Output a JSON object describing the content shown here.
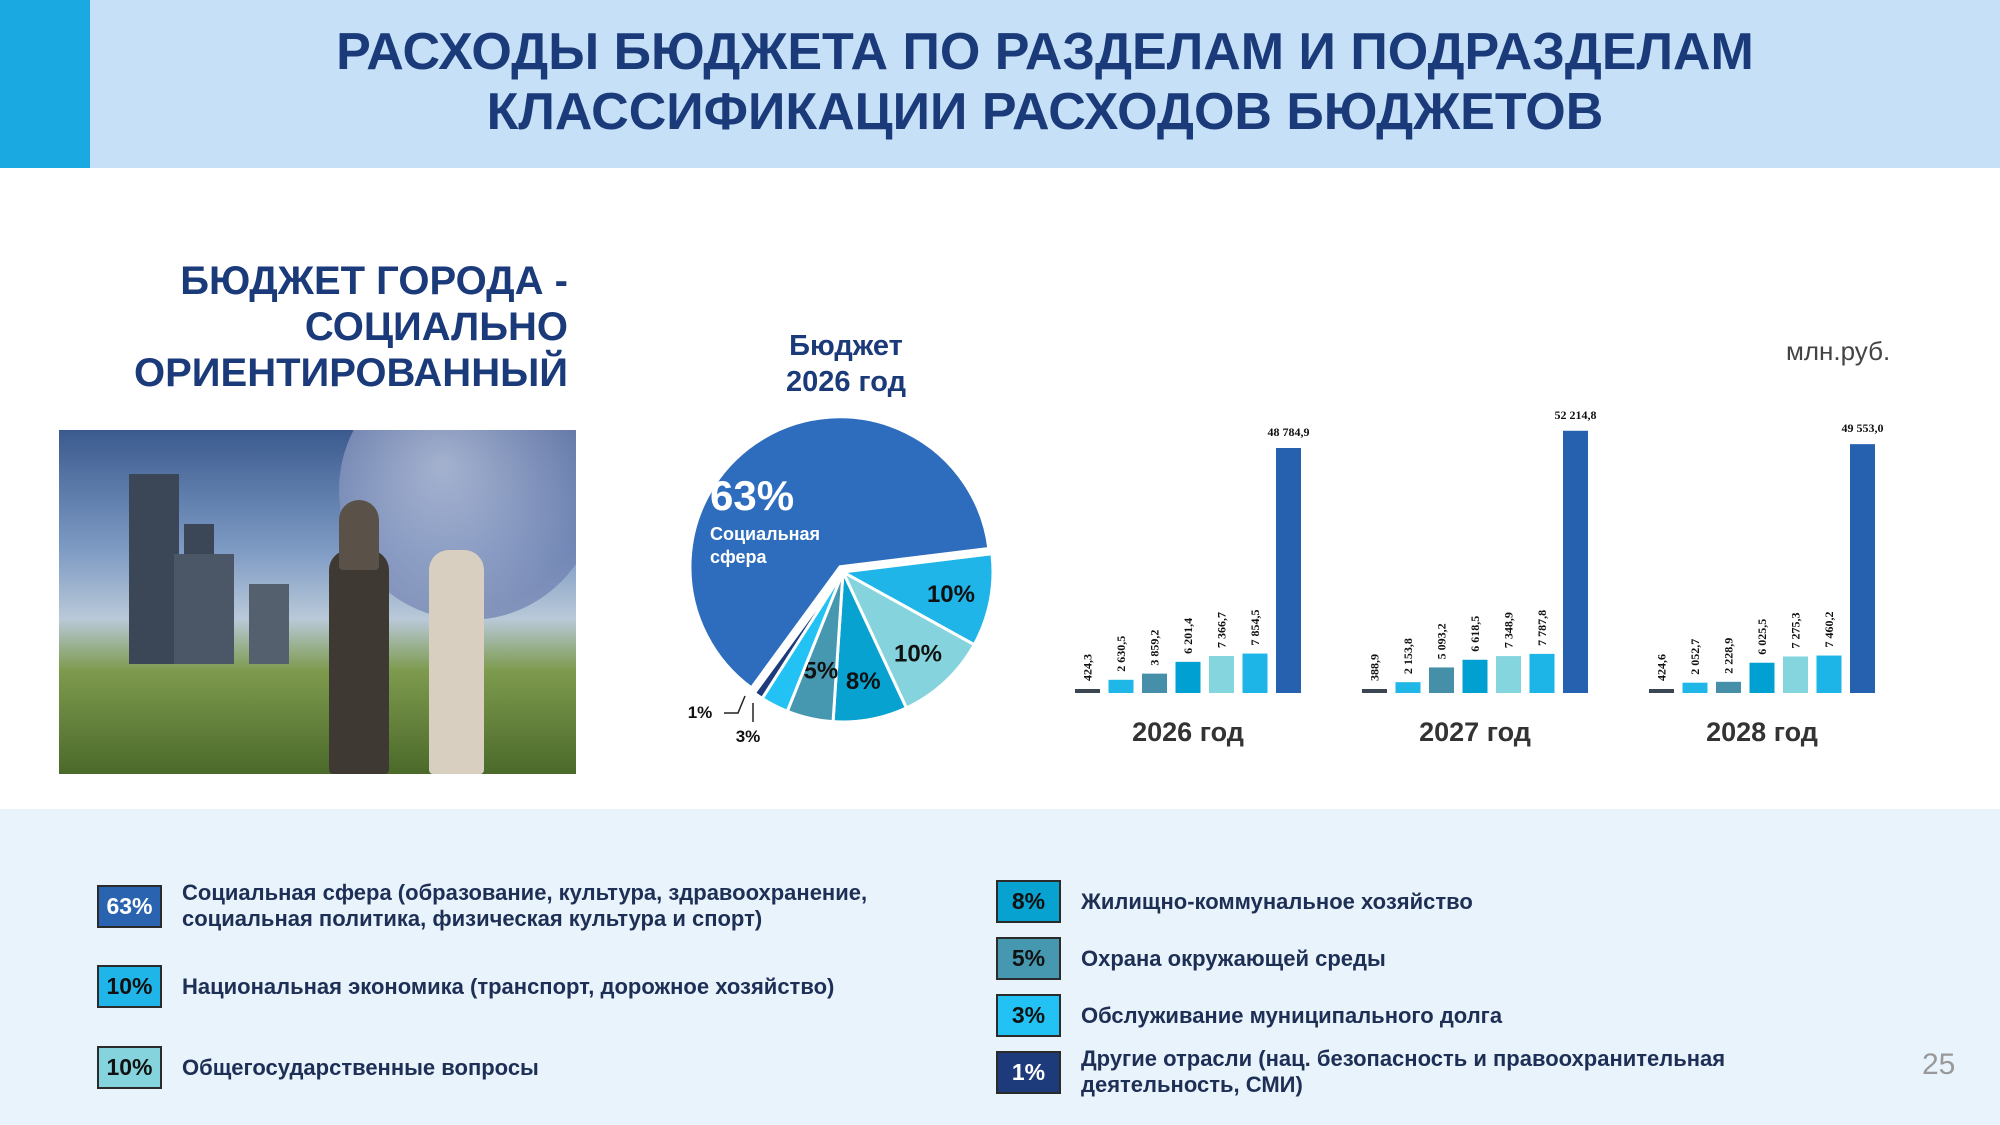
{
  "header": {
    "title_line1": "РАСХОДЫ БЮДЖЕТА ПО РАЗДЕЛАМ И ПОДРАЗДЕЛАМ",
    "title_line2": "КЛАССИФИКАЦИИ РАСХОДОВ БЮДЖЕТОВ"
  },
  "left_heading": {
    "line1": "БЮДЖЕТ ГОРОДА -",
    "line2": "СОЦИАЛЬНО",
    "line3": "ОРИЕНТИРОВАННЫЙ"
  },
  "unit": "млн.руб.",
  "page_number": "25",
  "legend": [
    {
      "pct": "63%",
      "text": "Социальная сфера (образование, культура, здравоохранение, социальная политика, физическая культура и спорт)",
      "color": "#2a64b0",
      "text_color": "#ffffff"
    },
    {
      "pct": "10%",
      "text": "Национальная экономика (транспорт, дорожное хозяйство)",
      "color": "#1fb5e8",
      "text_color": "#111111"
    },
    {
      "pct": "10%",
      "text": "Общегосударственные вопросы",
      "color": "#85d4dd",
      "text_color": "#111111"
    },
    {
      "pct": "8%",
      "text": "Жилищно-коммунальное хозяйство",
      "color": "#08a2d0",
      "text_color": "#111111"
    },
    {
      "pct": "5%",
      "text": "Охрана окружающей среды",
      "color": "#4598b0",
      "text_color": "#111111"
    },
    {
      "pct": "3%",
      "text": "Обслуживание муниципального долга",
      "color": "#22c3f4",
      "text_color": "#111111"
    },
    {
      "pct": "1%",
      "text": "Другие отрасли (нац. безопасность и правоохранительная деятельность, СМИ)",
      "color": "#1d3b7a",
      "text_color": "#ffffff"
    }
  ],
  "chart_data": [
    {
      "type": "pie",
      "title": "Бюджет 2026 год",
      "slices": [
        {
          "label": "10%",
          "value": 10,
          "color": "#1fb5e8"
        },
        {
          "label": "10%",
          "value": 10,
          "color": "#85d4dd"
        },
        {
          "label": "8%",
          "value": 8,
          "color": "#08a2d0"
        },
        {
          "label": "5%",
          "value": 5,
          "color": "#4598b0"
        },
        {
          "label": "3%",
          "value": 3,
          "color": "#22c3f4"
        },
        {
          "label": "1%",
          "value": 1,
          "color": "#1d3b7a"
        },
        {
          "label": "63%",
          "value": 63,
          "color": "#2e6dbd",
          "sublabel": "Социальная сфера"
        }
      ]
    },
    {
      "type": "bar",
      "ylabel": "млн.руб.",
      "groups": [
        {
          "label": "2026 год",
          "values": [
            424.3,
            2630.5,
            3859.2,
            6201.4,
            7366.7,
            7854.5,
            48784.9
          ],
          "labels": [
            "424,3",
            "2 630,5",
            "3 859,2",
            "6 201,4",
            "7 366,7",
            "7 854,5",
            "48 784,9"
          ]
        },
        {
          "label": "2027 год",
          "values": [
            388.9,
            2153.8,
            5093.2,
            6618.5,
            7348.9,
            7787.8,
            52214.8
          ],
          "labels": [
            "388,9",
            "2 153,8",
            "5 093,2",
            "6 618,5",
            "7 348,9",
            "7 787,8",
            "52 214,8"
          ]
        },
        {
          "label": "2028 год",
          "values": [
            424.6,
            2052.7,
            2228.9,
            6025.5,
            7275.3,
            7460.2,
            49553.0
          ],
          "labels": [
            "424,6",
            "2 052,7",
            "2 228,9",
            "6 025,5",
            "7 275,3",
            "7 460,2",
            "49 553,0"
          ]
        }
      ],
      "colors": [
        "#3a4652",
        "#1fb6e8",
        "#4590a8",
        "#00a0d2",
        "#85d5de",
        "#1db5e8",
        "#2561ae"
      ]
    }
  ]
}
